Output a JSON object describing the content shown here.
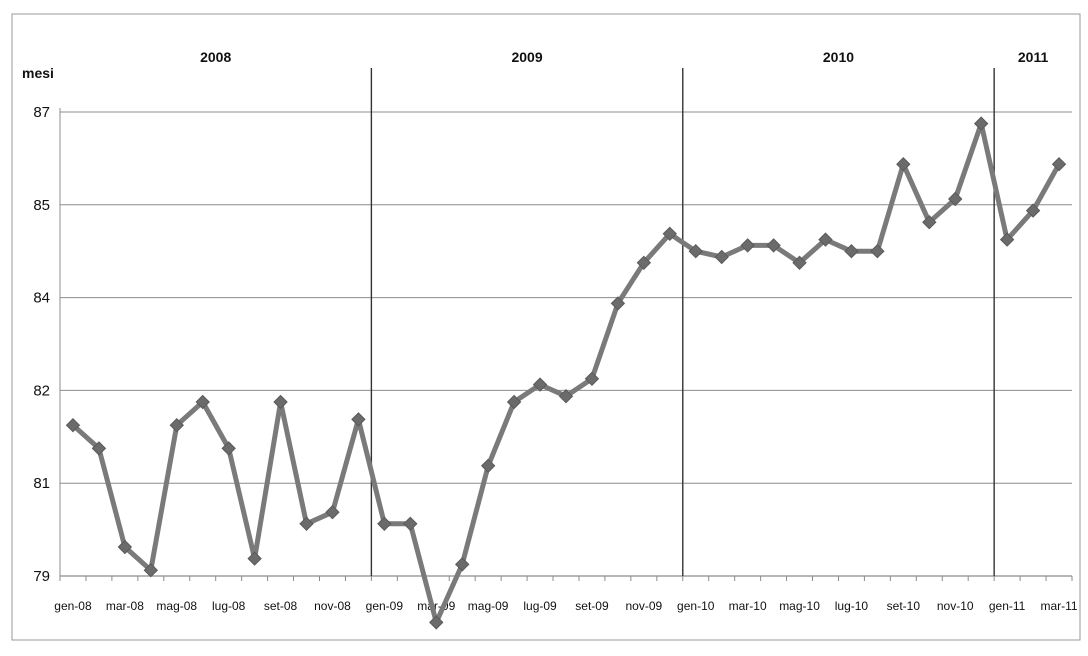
{
  "chart_data": {
    "type": "line",
    "ylabel": "mesi",
    "yticks": [
      "87",
      "85",
      "84",
      "82",
      "81",
      "79"
    ],
    "ylim": [
      79,
      87
    ],
    "grid": true,
    "legend": "none",
    "years": [
      {
        "label": "2008",
        "start": 0,
        "end": 12
      },
      {
        "label": "2009",
        "start": 12,
        "end": 24
      },
      {
        "label": "2010",
        "start": 24,
        "end": 36
      },
      {
        "label": "2011",
        "start": 36,
        "end": 39
      }
    ],
    "x": [
      "gen-08",
      "feb-08",
      "mar-08",
      "apr-08",
      "mag-08",
      "giu-08",
      "lug-08",
      "ago-08",
      "set-08",
      "ott-08",
      "nov-08",
      "dic-08",
      "gen-09",
      "feb-09",
      "mar-09",
      "apr-09",
      "mag-09",
      "giu-09",
      "lug-09",
      "ago-09",
      "set-09",
      "ott-09",
      "nov-09",
      "dic-09",
      "gen-10",
      "feb-10",
      "mar-10",
      "apr-10",
      "mag-10",
      "giu-10",
      "lug-10",
      "ago-10",
      "set-10",
      "ott-10",
      "nov-10",
      "dic-10",
      "gen-11",
      "feb-11",
      "mar-11"
    ],
    "x_labels_shown": [
      "gen-08",
      "mar-08",
      "mag-08",
      "lug-08",
      "set-08",
      "nov-08",
      "gen-09",
      "mar-09",
      "mag-09",
      "lug-09",
      "set-09",
      "nov-09",
      "gen-10",
      "mar-10",
      "mag-10",
      "lug-10",
      "set-10",
      "nov-10",
      "gen-11",
      "mar-11"
    ],
    "values": [
      81.6,
      81.2,
      79.5,
      79.1,
      81.6,
      82.0,
      81.2,
      79.3,
      82.0,
      79.9,
      80.1,
      81.7,
      79.9,
      79.9,
      78.2,
      79.2,
      80.9,
      82.0,
      82.3,
      82.1,
      82.4,
      83.7,
      84.4,
      84.9,
      84.6,
      84.5,
      84.7,
      84.7,
      84.4,
      84.8,
      84.6,
      84.6,
      86.1,
      85.1,
      85.5,
      86.8,
      84.8,
      85.3,
      86.1
    ],
    "colors": {
      "line": "#7a7a7a",
      "marker": "#6b6b6b",
      "grid": "#8c8c8c",
      "divider": "#333333",
      "text": "#111111"
    }
  }
}
